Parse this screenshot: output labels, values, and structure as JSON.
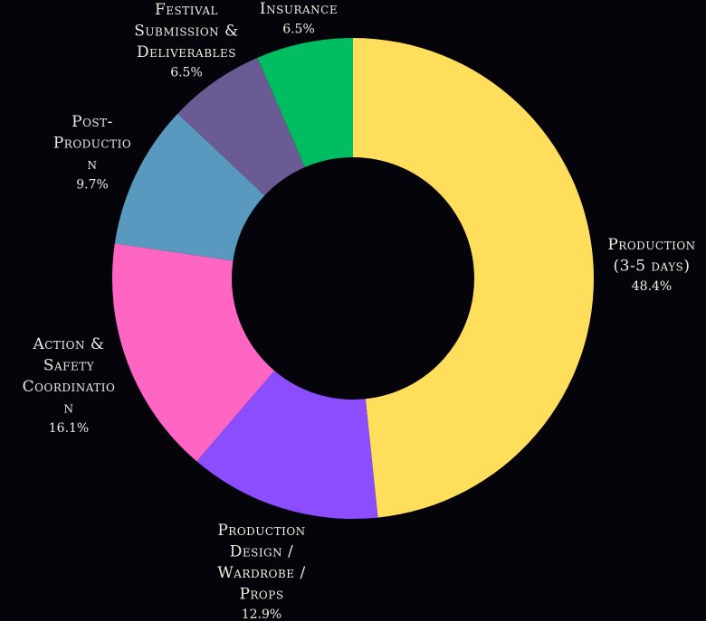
{
  "chart_data": {
    "type": "pie",
    "donut": true,
    "title": "",
    "background": "#04040a",
    "slices": [
      {
        "label_lines": [
          "Production",
          "(3-5 days)"
        ],
        "percent_label": "48.4%",
        "value": 48.4,
        "color": "#ffde5c"
      },
      {
        "label_lines": [
          "Production",
          "Design /",
          "Wardrobe /",
          "Props"
        ],
        "percent_label": "12.9%",
        "value": 12.9,
        "color": "#8c4dff"
      },
      {
        "label_lines": [
          "Action &",
          "Safety",
          "Coordinatio",
          "n"
        ],
        "percent_label": "16.1%",
        "value": 16.1,
        "color": "#ff66c4"
      },
      {
        "label_lines": [
          "Post-",
          "Productio",
          "n"
        ],
        "percent_label": "9.7%",
        "value": 9.7,
        "color": "#5a99bf"
      },
      {
        "label_lines": [
          "Festival",
          "Submission &",
          "Deliverables"
        ],
        "percent_label": "6.5%",
        "value": 6.5,
        "color": "#6b5b95"
      },
      {
        "label_lines": [
          "Insurance"
        ],
        "percent_label": "6.5%",
        "value": 6.5,
        "color": "#00bd62"
      }
    ]
  }
}
